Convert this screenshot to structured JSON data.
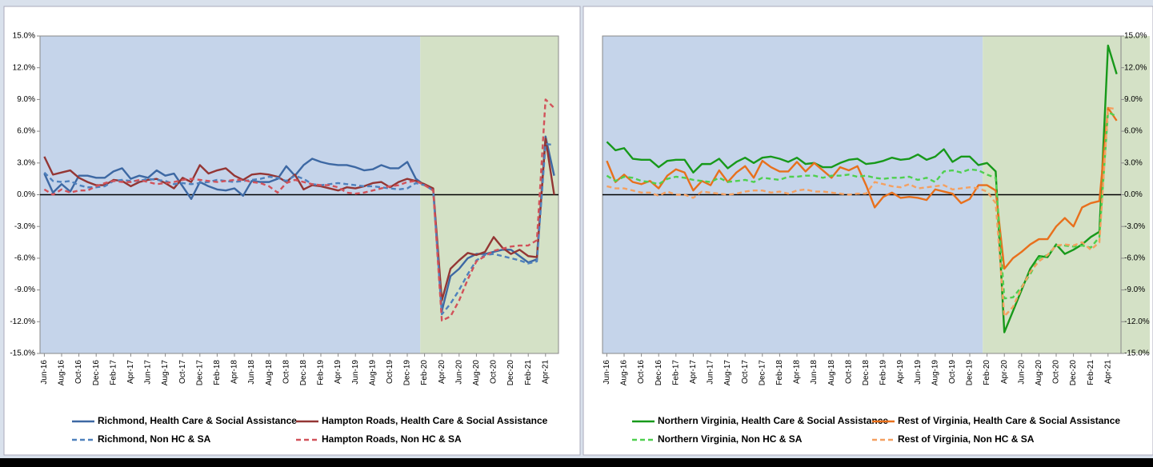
{
  "chart_data": [
    {
      "type": "line",
      "y_axis_side": "left",
      "split_category": "Feb-20",
      "region_colors": [
        "#c5d4ea",
        "#d4e1c6"
      ],
      "zero_line": true,
      "categories": [
        "Jun-16",
        null,
        "Aug-16",
        null,
        "Oct-16",
        null,
        "Dec-16",
        null,
        "Feb-17",
        null,
        "Apr-17",
        null,
        "Jun-17",
        null,
        "Aug-17",
        null,
        "Oct-17",
        null,
        "Dec-17",
        null,
        "Feb-18",
        null,
        "Apr-18",
        null,
        "Jun-18",
        null,
        "Aug-18",
        null,
        "Oct-18",
        null,
        "Dec-18",
        null,
        "Feb-19",
        null,
        "Apr-19",
        null,
        "Jun-19",
        null,
        "Aug-19",
        null,
        "Oct-19",
        null,
        "Dec-19",
        null,
        "Feb-20",
        null,
        "Apr-20",
        null,
        "Jun-20",
        null,
        "Aug-20",
        null,
        "Oct-20",
        null,
        "Dec-20",
        null,
        "Feb-21",
        null,
        "Apr-21",
        null
      ],
      "ylim": [
        -15,
        15
      ],
      "yticks": [
        {
          "value": -15,
          "label": "-15.0%"
        },
        {
          "value": -12,
          "label": "-12.0%"
        },
        {
          "value": -9,
          "label": "-9.0%"
        },
        {
          "value": -6,
          "label": "-6.0%"
        },
        {
          "value": -3,
          "label": "-3.0%"
        },
        {
          "value": 0,
          "label": "0.0%"
        },
        {
          "value": 3,
          "label": "3.0%"
        },
        {
          "value": 6,
          "label": "6.0%"
        },
        {
          "value": 9,
          "label": "9.0%"
        },
        {
          "value": 12,
          "label": "12.0%"
        },
        {
          "value": 15,
          "label": "15.0%"
        }
      ],
      "series": [
        {
          "name": "Richmond, Health Care & Social Assistance",
          "color": "#3d68a3",
          "dashed": false,
          "values": [
            2.0,
            0.2,
            1.0,
            0.3,
            1.8,
            1.8,
            1.6,
            1.6,
            2.2,
            2.5,
            1.5,
            1.8,
            1.6,
            2.3,
            1.8,
            2.0,
            0.8,
            -0.4,
            1.2,
            0.8,
            0.5,
            0.4,
            0.6,
            -0.1,
            1.3,
            1.2,
            1.2,
            1.5,
            2.7,
            1.8,
            2.8,
            3.4,
            3.1,
            2.9,
            2.8,
            2.8,
            2.6,
            2.3,
            2.4,
            2.8,
            2.5,
            2.5,
            3.1,
            1.5,
            0.9,
            0.5,
            -11.0,
            -7.7,
            -7.0,
            -6.0,
            -5.6,
            -5.6,
            -5.4,
            -5.2,
            -5.2,
            -5.8,
            -6.4,
            -6.1,
            5.5,
            1.8
          ]
        },
        {
          "name": "Hampton Roads, Health Care & Social Assistance",
          "color": "#943634",
          "dashed": false,
          "values": [
            3.6,
            1.9,
            2.1,
            2.3,
            1.6,
            1.2,
            0.9,
            0.9,
            1.4,
            1.3,
            0.8,
            1.2,
            1.4,
            1.5,
            1.1,
            0.6,
            1.6,
            1.2,
            2.8,
            2.0,
            2.3,
            2.5,
            1.8,
            1.4,
            1.9,
            2.0,
            1.9,
            1.7,
            1.2,
            1.9,
            0.5,
            0.9,
            0.8,
            0.6,
            0.4,
            0.7,
            0.6,
            0.8,
            1.1,
            1.2,
            0.7,
            1.2,
            1.5,
            1.3,
            1.0,
            0.6,
            -10.0,
            -7.0,
            -6.2,
            -5.5,
            -5.7,
            -5.4,
            -4.0,
            -5.0,
            -5.6,
            -5.2,
            -5.8,
            -5.9,
            5.3,
            0.0
          ]
        },
        {
          "name": "Richmond, Non HC & SA",
          "color": "#4f81bd",
          "dashed": true,
          "values": [
            2.1,
            1.3,
            1.2,
            1.3,
            0.9,
            0.7,
            0.7,
            0.8,
            1.3,
            1.4,
            1.3,
            1.3,
            1.5,
            1.4,
            1.3,
            1.0,
            1.1,
            1.0,
            1.1,
            1.2,
            1.4,
            1.3,
            1.2,
            1.3,
            1.4,
            1.5,
            1.7,
            1.6,
            1.3,
            1.8,
            1.5,
            1.0,
            0.9,
            1.0,
            1.1,
            1.0,
            0.9,
            0.8,
            0.8,
            0.7,
            0.6,
            0.5,
            0.6,
            1.1,
            0.9,
            0.4,
            -11.3,
            -10.3,
            -9.0,
            -7.5,
            -6.2,
            -5.7,
            -5.6,
            -5.8,
            -6.0,
            -6.2,
            -6.5,
            -6.3,
            4.8,
            4.7
          ]
        },
        {
          "name": "Hampton Roads, Non HC & SA",
          "color": "#d2525a",
          "dashed": true,
          "values": [
            0.5,
            0.0,
            0.5,
            0.2,
            0.4,
            0.4,
            0.8,
            1.1,
            1.3,
            1.2,
            1.2,
            1.4,
            1.2,
            1.0,
            1.1,
            1.2,
            1.4,
            1.5,
            1.4,
            1.3,
            1.2,
            1.3,
            1.4,
            1.4,
            1.2,
            1.1,
            0.8,
            0.2,
            1.1,
            1.4,
            1.2,
            1.0,
            0.9,
            0.9,
            0.7,
            0.2,
            0.1,
            0.2,
            0.4,
            0.6,
            0.8,
            0.9,
            1.2,
            1.3,
            0.9,
            0.4,
            -11.9,
            -11.5,
            -10.0,
            -8.0,
            -6.3,
            -5.8,
            -5.3,
            -5.1,
            -4.9,
            -4.8,
            -4.8,
            -4.3,
            9.0,
            8.2
          ]
        }
      ]
    },
    {
      "type": "line",
      "y_axis_side": "right",
      "split_category": "Feb-20",
      "region_colors": [
        "#c5d4ea",
        "#d4e1c6"
      ],
      "zero_line": true,
      "categories": [
        "Jun-16",
        null,
        "Aug-16",
        null,
        "Oct-16",
        null,
        "Dec-16",
        null,
        "Feb-17",
        null,
        "Apr-17",
        null,
        "Jun-17",
        null,
        "Aug-17",
        null,
        "Oct-17",
        null,
        "Dec-17",
        null,
        "Feb-18",
        null,
        "Apr-18",
        null,
        "Jun-18",
        null,
        "Aug-18",
        null,
        "Oct-18",
        null,
        "Dec-18",
        null,
        "Feb-19",
        null,
        "Apr-19",
        null,
        "Jun-19",
        null,
        "Aug-19",
        null,
        "Oct-19",
        null,
        "Dec-19",
        null,
        "Feb-20",
        null,
        "Apr-20",
        null,
        "Jun-20",
        null,
        "Aug-20",
        null,
        "Oct-20",
        null,
        "Dec-20",
        null,
        "Feb-21",
        null,
        "Apr-21",
        null
      ],
      "ylim": [
        -15,
        15
      ],
      "yticks": [
        {
          "value": -15,
          "label": "-15.0%"
        },
        {
          "value": -12,
          "label": "-12.0%"
        },
        {
          "value": -9,
          "label": "-9.0%"
        },
        {
          "value": -6,
          "label": "-6.0%"
        },
        {
          "value": -3,
          "label": "-3.0%"
        },
        {
          "value": 0,
          "label": "0.0%"
        },
        {
          "value": 3,
          "label": "3.0%"
        },
        {
          "value": 6,
          "label": "6.0%"
        },
        {
          "value": 9,
          "label": "9.0%"
        },
        {
          "value": 12,
          "label": "12.0%"
        },
        {
          "value": 15,
          "label": "15.0%"
        }
      ],
      "series": [
        {
          "name": "Northern Virginia, Health Care & Social Assistance",
          "color": "#17991a",
          "dashed": false,
          "values": [
            5.0,
            4.2,
            4.4,
            3.4,
            3.3,
            3.3,
            2.6,
            3.2,
            3.3,
            3.3,
            2.1,
            2.9,
            2.9,
            3.4,
            2.5,
            3.1,
            3.5,
            3.0,
            3.5,
            3.6,
            3.4,
            3.1,
            3.5,
            2.9,
            3.0,
            2.6,
            2.6,
            3.0,
            3.3,
            3.4,
            2.9,
            3.0,
            3.2,
            3.5,
            3.3,
            3.4,
            3.8,
            3.3,
            3.6,
            4.3,
            3.1,
            3.6,
            3.6,
            2.8,
            3.0,
            2.2,
            -13.0,
            -11.0,
            -9.0,
            -7.0,
            -5.8,
            -5.9,
            -4.7,
            -5.6,
            -5.2,
            -4.7,
            -4.0,
            -3.5,
            14.1,
            11.4
          ]
        },
        {
          "name": "Rest of Virginia, Health Care & Social Assistance",
          "color": "#e8701c",
          "dashed": false,
          "values": [
            3.2,
            1.2,
            1.9,
            1.2,
            1.0,
            1.3,
            0.6,
            1.8,
            2.4,
            2.1,
            0.4,
            1.3,
            0.9,
            2.3,
            1.2,
            2.1,
            2.7,
            1.6,
            3.2,
            2.6,
            2.2,
            2.2,
            3.1,
            2.2,
            3.0,
            2.3,
            1.6,
            2.6,
            2.3,
            2.7,
            0.9,
            -1.2,
            -0.2,
            0.2,
            -0.3,
            -0.2,
            -0.3,
            -0.5,
            0.5,
            0.3,
            0.1,
            -0.8,
            -0.4,
            0.9,
            0.9,
            0.4,
            -7.0,
            -6.0,
            -5.4,
            -4.7,
            -4.2,
            -4.2,
            -3.0,
            -2.2,
            -3.0,
            -1.2,
            -0.8,
            -0.6,
            8.2,
            7.0
          ]
        },
        {
          "name": "Northern Virginia, Non HC & SA",
          "color": "#4fd04f",
          "dashed": true,
          "values": [
            1.8,
            1.3,
            1.7,
            1.6,
            1.3,
            1.2,
            1.0,
            1.5,
            1.7,
            1.6,
            1.4,
            1.3,
            1.2,
            1.6,
            1.2,
            1.3,
            1.4,
            1.2,
            1.6,
            1.5,
            1.4,
            1.7,
            1.7,
            1.8,
            1.8,
            1.6,
            1.8,
            1.8,
            1.9,
            1.7,
            1.8,
            1.6,
            1.5,
            1.6,
            1.6,
            1.7,
            1.4,
            1.6,
            1.2,
            2.2,
            2.3,
            2.1,
            2.4,
            2.3,
            1.9,
            1.6,
            -9.8,
            -9.7,
            -8.7,
            -7.5,
            -6.0,
            -5.7,
            -4.8,
            -4.8,
            -4.9,
            -4.8,
            -5.0,
            -4.0,
            7.8,
            7.4
          ]
        },
        {
          "name": "Rest of Virginia, Non HC & SA",
          "color": "#f5a060",
          "dashed": true,
          "values": [
            0.8,
            0.6,
            0.6,
            0.4,
            0.2,
            0.2,
            -0.1,
            0.3,
            0.0,
            0.0,
            -0.3,
            0.3,
            0.2,
            0.1,
            0.0,
            0.1,
            0.3,
            0.4,
            0.4,
            0.2,
            0.3,
            0.1,
            0.4,
            0.5,
            0.3,
            0.3,
            0.2,
            0.1,
            0.0,
            0.1,
            0.1,
            1.2,
            1.0,
            0.8,
            0.7,
            1.0,
            0.6,
            0.7,
            0.8,
            0.9,
            0.5,
            0.6,
            0.7,
            0.6,
            0.3,
            -0.8,
            -11.5,
            -10.6,
            -8.8,
            -7.3,
            -6.3,
            -5.7,
            -4.8,
            -4.7,
            -4.8,
            -4.5,
            -5.2,
            -4.5,
            8.2,
            8.1
          ]
        }
      ]
    }
  ]
}
